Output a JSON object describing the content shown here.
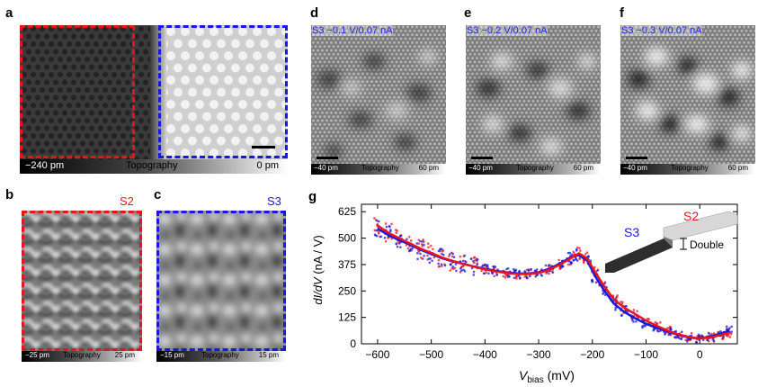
{
  "panels": {
    "a": {
      "label": "a",
      "bar_min": "−240 pm",
      "bar_title": "Topography",
      "bar_max": "0 pm"
    },
    "b": {
      "label": "b",
      "tag": "S2",
      "bar_min": "−25 pm",
      "bar_title": "Topography",
      "bar_max": "25 pm"
    },
    "c": {
      "label": "c",
      "tag": "S3",
      "bar_min": "−15 pm",
      "bar_title": "Topography",
      "bar_max": "15 pm"
    },
    "d": {
      "label": "d",
      "condition": "S3 −0.1 V/0.07 nA",
      "bar_min": "−40 pm",
      "bar_title": "Topography",
      "bar_max": "60 pm"
    },
    "e": {
      "label": "e",
      "condition": "S3 −0.2 V/0.07 nA",
      "bar_min": "−40 pm",
      "bar_title": "Topography",
      "bar_max": "60 pm"
    },
    "f": {
      "label": "f",
      "condition": "S3 −0.3 V/0.07 nA",
      "bar_min": "−40 pm",
      "bar_title": "Topography",
      "bar_max": "60 pm"
    },
    "g": {
      "label": "g"
    }
  },
  "colors": {
    "s2": "#e8141b",
    "s3": "#1818e0"
  },
  "chart_data": {
    "type": "line",
    "xlabel_main": "V",
    "xlabel_sub": "bias",
    "xlabel_unit": " (mV)",
    "ylabel_main": "dI/dV",
    "ylabel_unit": " (nA / V)",
    "xlim": [
      -630,
      70
    ],
    "ylim": [
      0,
      660
    ],
    "xticks": [
      -600,
      -500,
      -400,
      -300,
      -200,
      -100,
      0
    ],
    "xtick_labels": [
      "−600",
      "−500",
      "−400",
      "−300",
      "−200",
      "−100",
      "0"
    ],
    "yticks": [
      0,
      125,
      250,
      375,
      500,
      625
    ],
    "ytick_labels": [
      "0",
      "125",
      "250",
      "375",
      "500",
      "625"
    ],
    "series": [
      {
        "name": "S3",
        "color": "#1818e0",
        "x": [
          -600,
          -580,
          -560,
          -540,
          -520,
          -500,
          -480,
          -460,
          -440,
          -420,
          -400,
          -380,
          -360,
          -340,
          -320,
          -300,
          -280,
          -260,
          -240,
          -225,
          -210,
          -195,
          -180,
          -160,
          -140,
          -120,
          -100,
          -80,
          -60,
          -40,
          -20,
          0,
          20,
          40,
          55
        ],
        "y": [
          545,
          515,
          490,
          470,
          445,
          425,
          405,
          390,
          378,
          365,
          355,
          345,
          338,
          333,
          332,
          338,
          355,
          380,
          410,
          420,
          395,
          320,
          260,
          190,
          150,
          120,
          95,
          75,
          58,
          42,
          30,
          25,
          35,
          50,
          62
        ]
      },
      {
        "name": "S2",
        "color": "#e8141b",
        "x": [
          -600,
          -580,
          -560,
          -540,
          -520,
          -500,
          -480,
          -460,
          -440,
          -420,
          -400,
          -380,
          -360,
          -340,
          -320,
          -300,
          -280,
          -260,
          -240,
          -225,
          -210,
          -195,
          -180,
          -160,
          -140,
          -120,
          -100,
          -80,
          -60,
          -40,
          -20,
          0,
          20,
          40,
          55
        ],
        "y": [
          560,
          525,
          500,
          475,
          450,
          430,
          408,
          392,
          378,
          365,
          352,
          342,
          335,
          330,
          330,
          335,
          350,
          375,
          405,
          428,
          405,
          340,
          280,
          210,
          170,
          140,
          110,
          85,
          62,
          45,
          32,
          25,
          30,
          42,
          52
        ]
      }
    ],
    "inset": {
      "left_label": "S3",
      "right_label": "S2",
      "step_label": "Double"
    }
  }
}
